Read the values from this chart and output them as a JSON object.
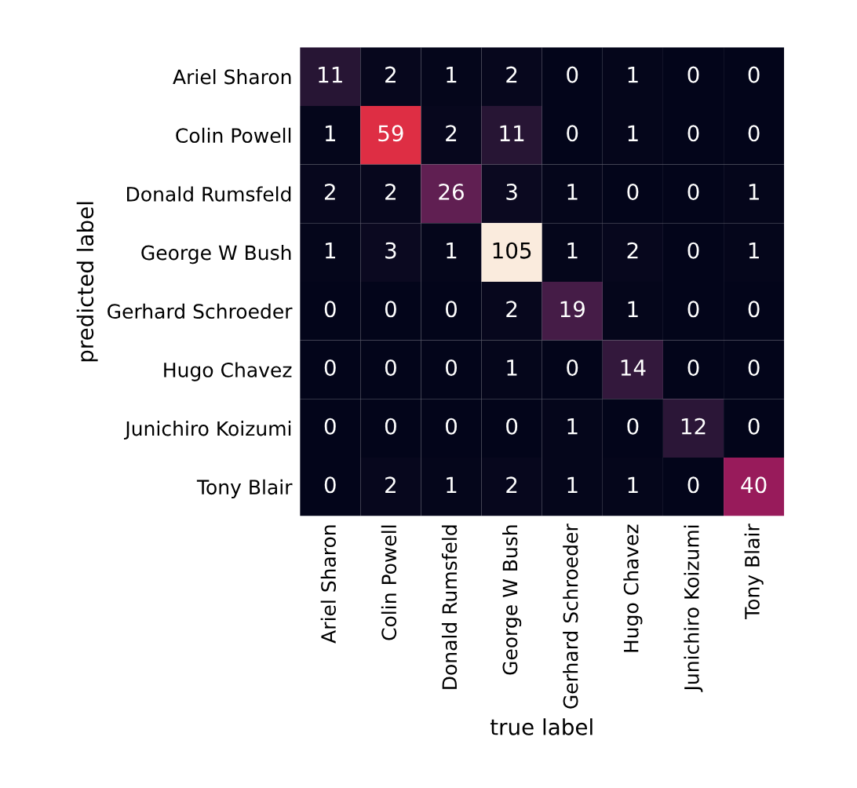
{
  "chart_data": {
    "type": "heatmap",
    "xlabel": "true label",
    "ylabel": "predicted label",
    "categories": [
      "Ariel Sharon",
      "Colin Powell",
      "Donald Rumsfeld",
      "George W Bush",
      "Gerhard Schroeder",
      "Hugo Chavez",
      "Junichiro Koizumi",
      "Tony Blair"
    ],
    "y_categories": [
      "Ariel Sharon",
      "Colin Powell",
      "Donald Rumsfeld",
      "George W Bush",
      "Gerhard Schroeder",
      "Hugo Chavez",
      "Junichiro Koizumi",
      "Tony Blair"
    ],
    "cells": [
      [
        11,
        2,
        1,
        2,
        0,
        1,
        0,
        0
      ],
      [
        1,
        59,
        2,
        11,
        0,
        1,
        0,
        0
      ],
      [
        2,
        2,
        26,
        3,
        1,
        0,
        0,
        1
      ],
      [
        1,
        3,
        1,
        105,
        1,
        2,
        0,
        1
      ],
      [
        0,
        0,
        0,
        2,
        19,
        1,
        0,
        0
      ],
      [
        0,
        0,
        0,
        1,
        0,
        14,
        0,
        0
      ],
      [
        0,
        0,
        0,
        0,
        1,
        0,
        12,
        0
      ],
      [
        0,
        2,
        1,
        2,
        1,
        1,
        0,
        40
      ]
    ],
    "data_labels": true
  }
}
